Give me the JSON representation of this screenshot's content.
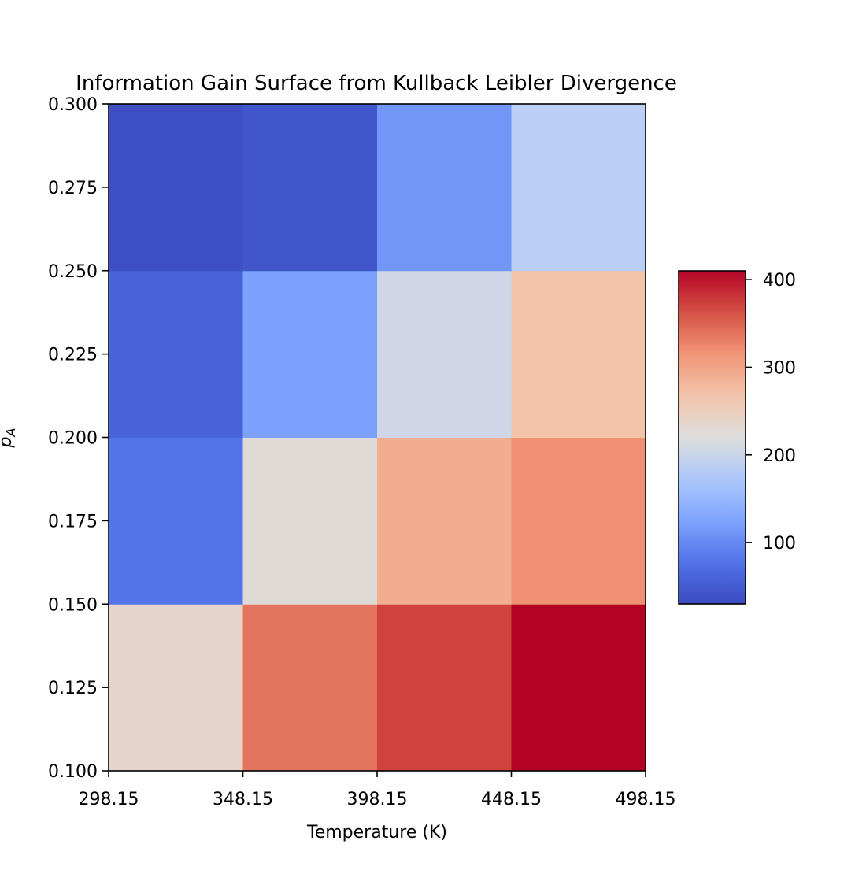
{
  "chart_data": {
    "type": "heatmap",
    "title": "Information Gain Surface from Kullback Leibler Divergence",
    "xlabel": "Temperature (K)",
    "ylabel": "p_A",
    "x_edges": [
      298.15,
      348.15,
      398.15,
      448.15,
      498.15
    ],
    "y_edges": [
      0.1,
      0.15,
      0.2,
      0.25,
      0.3
    ],
    "x_tick_labels": [
      "298.15",
      "348.15",
      "398.15",
      "448.15",
      "498.15"
    ],
    "y_tick_labels": [
      "0.100",
      "0.125",
      "0.150",
      "0.175",
      "0.200",
      "0.225",
      "0.250",
      "0.275",
      "0.300"
    ],
    "values_rows_bottom_to_top": [
      [
        238,
        338,
        372,
        410
      ],
      [
        80,
        226,
        292,
        318
      ],
      [
        58,
        122,
        205,
        268
      ],
      [
        34,
        42,
        112,
        187
      ]
    ],
    "colormap": "coolwarm",
    "colorbar": {
      "vmin": 30,
      "vmax": 410,
      "ticks": [
        100,
        200,
        300,
        400
      ],
      "tick_labels": [
        "100",
        "200",
        "300",
        "400"
      ]
    },
    "grid": false
  }
}
